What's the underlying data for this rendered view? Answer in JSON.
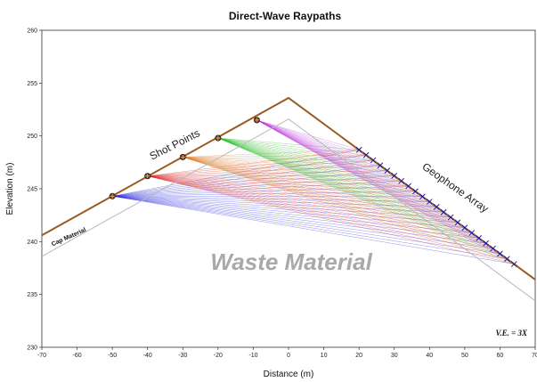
{
  "title": "Direct-Wave Raypaths",
  "axes": {
    "xlabel": "Distance (m)",
    "ylabel": "Elevation (m)",
    "xlim": [
      -70,
      70
    ],
    "ylim": [
      230,
      260
    ],
    "xticks": [
      "-70",
      "-60",
      "-50",
      "-40",
      "-30",
      "-20",
      "-10",
      "0",
      "10",
      "20",
      "30",
      "40",
      "50",
      "60",
      "70"
    ],
    "yticks": [
      "230",
      "235",
      "240",
      "245",
      "250",
      "255",
      "260"
    ]
  },
  "annotations": {
    "shot_points": "Shot Points",
    "geophone_array": "Geophone Array",
    "cap_material": "Cap Material",
    "waste_material": "Waste Material",
    "vertical_exaggeration": "V.E. = 3X"
  },
  "colors": {
    "surface": "#9a5a22",
    "shot_marker": "#7a3a1a",
    "geophone": "#1a1aa8",
    "inner_boundary": "#b8b8b8"
  },
  "chart_data": {
    "type": "line",
    "surface_profile": {
      "x": [
        -70,
        0,
        70
      ],
      "y": [
        240.6,
        253.6,
        236.4
      ]
    },
    "inner_boundary": {
      "x": [
        -70,
        0,
        70
      ],
      "y": [
        238.6,
        251.6,
        234.4
      ]
    },
    "shots": [
      {
        "x": -50,
        "y": 244.3,
        "color": "#2222dd"
      },
      {
        "x": -40,
        "y": 246.2,
        "color": "#dd2222"
      },
      {
        "x": -30,
        "y": 248.0,
        "color": "#dd7722"
      },
      {
        "x": -20,
        "y": 249.8,
        "color": "#22bb22"
      },
      {
        "x": -9,
        "y": 251.5,
        "color": "#bb33dd"
      }
    ],
    "geophones": {
      "x_start": 20,
      "x_end": 65,
      "spacing": 2,
      "slope": -0.2457,
      "y_at_0": 253.6
    }
  }
}
